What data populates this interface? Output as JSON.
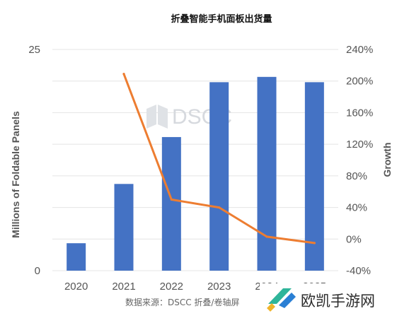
{
  "chart_data": {
    "type": "bar",
    "title": "折叠智能手机面板出货量",
    "categories": [
      "2020",
      "2021",
      "2022",
      "2023",
      "2024",
      "2025"
    ],
    "series": [
      {
        "kind": "bar",
        "axis": "left",
        "color": "#4472c4",
        "values": [
          3.1,
          9.8,
          15.1,
          21.3,
          21.9,
          21.3
        ]
      },
      {
        "kind": "line",
        "axis": "right",
        "color": "#ed7d31",
        "values": [
          null,
          209,
          50,
          40,
          3,
          -5
        ]
      }
    ],
    "ylabel": "Millions of Foldable Panels",
    "y2label": "Growth",
    "ylim": [
      0,
      25
    ],
    "y2lim": [
      -40,
      240
    ],
    "yticks": [
      "0",
      "25"
    ],
    "y2ticks": [
      "240%",
      "200%",
      "160%",
      "120%",
      "80%",
      "40%",
      "0%",
      "-40%"
    ],
    "y2tick_values": [
      240,
      200,
      160,
      120,
      80,
      40,
      0,
      -40
    ],
    "grid": true,
    "source": "数据来源：DSCC 折叠/卷轴屏",
    "watermark": "DSCC"
  },
  "site_logo": {
    "text": "欧凯手游网",
    "color": "#2fb59a"
  }
}
